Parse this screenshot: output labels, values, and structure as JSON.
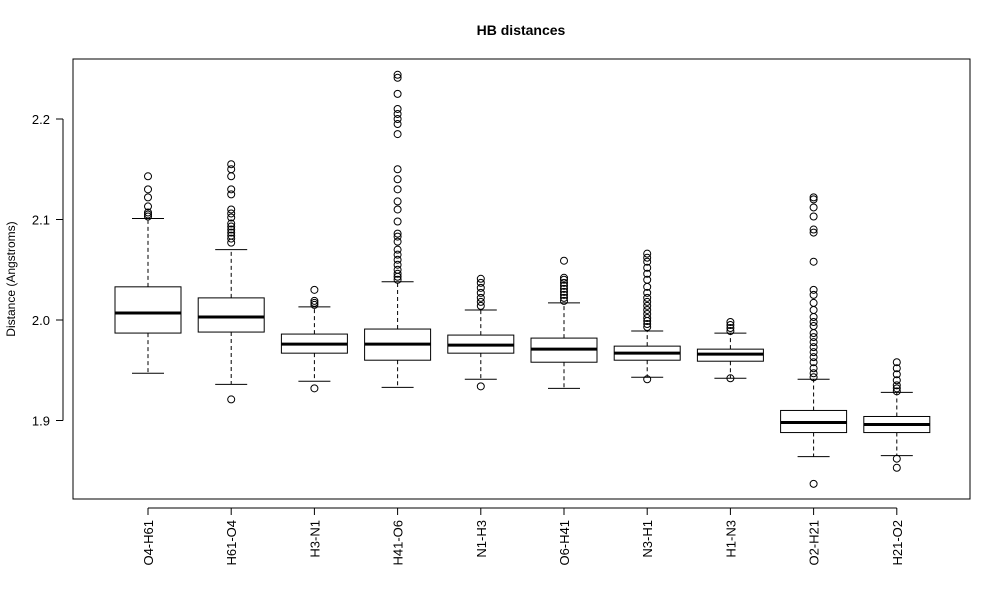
{
  "chart_data": {
    "type": "boxplot",
    "title": "HB distances",
    "ylabel": "Distance (Angstroms)",
    "xlabel": "",
    "ylim": [
      1.82,
      2.26
    ],
    "yticks": [
      1.9,
      2.0,
      2.1,
      2.2
    ],
    "grid": false,
    "categories": [
      "O4-H61",
      "H61-O4",
      "H3-N1",
      "H41-O6",
      "N1-H3",
      "O6-H41",
      "N3-H1",
      "H1-N3",
      "O2-H21",
      "H21-O2"
    ],
    "boxes": [
      {
        "name": "O4-H61",
        "whisker_low": 1.947,
        "q1": 1.987,
        "median": 2.007,
        "q3": 2.033,
        "whisker_high": 2.101,
        "outliers": [
          2.103,
          2.105,
          2.107,
          2.113,
          2.122,
          2.13,
          2.143
        ]
      },
      {
        "name": "H61-O4",
        "whisker_low": 1.936,
        "q1": 1.988,
        "median": 2.003,
        "q3": 2.022,
        "whisker_high": 2.07,
        "outliers": [
          1.921,
          2.077,
          2.081,
          2.084,
          2.087,
          2.09,
          2.093,
          2.096,
          2.102,
          2.106,
          2.11,
          2.125,
          2.13,
          2.143,
          2.15,
          2.155
        ]
      },
      {
        "name": "H3-N1",
        "whisker_low": 1.939,
        "q1": 1.967,
        "median": 1.976,
        "q3": 1.986,
        "whisker_high": 2.013,
        "outliers": [
          1.932,
          2.015,
          2.017,
          2.019,
          2.03
        ]
      },
      {
        "name": "H41-O6",
        "whisker_low": 1.933,
        "q1": 1.96,
        "median": 1.976,
        "q3": 1.991,
        "whisker_high": 2.038,
        "outliers": [
          2.04,
          2.043,
          2.046,
          2.05,
          2.055,
          2.06,
          2.065,
          2.07,
          2.078,
          2.083,
          2.086,
          2.098,
          2.11,
          2.118,
          2.13,
          2.14,
          2.15,
          2.185,
          2.195,
          2.2,
          2.205,
          2.21,
          2.225,
          2.241,
          2.244
        ]
      },
      {
        "name": "N1-H3",
        "whisker_low": 1.941,
        "q1": 1.967,
        "median": 1.975,
        "q3": 1.985,
        "whisker_high": 2.01,
        "outliers": [
          1.934,
          2.014,
          2.018,
          2.022,
          2.027,
          2.032,
          2.037,
          2.041
        ]
      },
      {
        "name": "O6-H41",
        "whisker_low": 1.932,
        "q1": 1.958,
        "median": 1.971,
        "q3": 1.982,
        "whisker_high": 2.017,
        "outliers": [
          2.019,
          2.022,
          2.025,
          2.028,
          2.031,
          2.034,
          2.037,
          2.04,
          2.042,
          2.059
        ]
      },
      {
        "name": "N3-H1",
        "whisker_low": 1.943,
        "q1": 1.96,
        "median": 1.967,
        "q3": 1.974,
        "whisker_high": 1.989,
        "outliers": [
          1.941,
          1.993,
          1.996,
          1.999,
          2.002,
          2.006,
          2.01,
          2.014,
          2.018,
          2.022,
          2.027,
          2.033,
          2.04,
          2.046,
          2.052,
          2.058,
          2.062,
          2.066
        ]
      },
      {
        "name": "H1-N3",
        "whisker_low": 1.942,
        "q1": 1.959,
        "median": 1.966,
        "q3": 1.971,
        "whisker_high": 1.987,
        "outliers": [
          1.942,
          1.989,
          1.992,
          1.995,
          1.998
        ]
      },
      {
        "name": "O2-H21",
        "whisker_low": 1.864,
        "q1": 1.888,
        "median": 1.898,
        "q3": 1.91,
        "whisker_high": 1.941,
        "outliers": [
          1.837,
          1.943,
          1.947,
          1.952,
          1.958,
          1.963,
          1.968,
          1.973,
          1.978,
          1.983,
          1.987,
          1.994,
          1.998,
          2.003,
          2.01,
          2.017,
          2.025,
          2.03,
          2.058,
          2.087,
          2.09,
          2.103,
          2.112,
          2.12,
          2.122
        ]
      },
      {
        "name": "H21-O2",
        "whisker_low": 1.865,
        "q1": 1.888,
        "median": 1.896,
        "q3": 1.904,
        "whisker_high": 1.928,
        "outliers": [
          1.853,
          1.862,
          1.929,
          1.932,
          1.935,
          1.94,
          1.946,
          1.952,
          1.958
        ]
      }
    ]
  }
}
